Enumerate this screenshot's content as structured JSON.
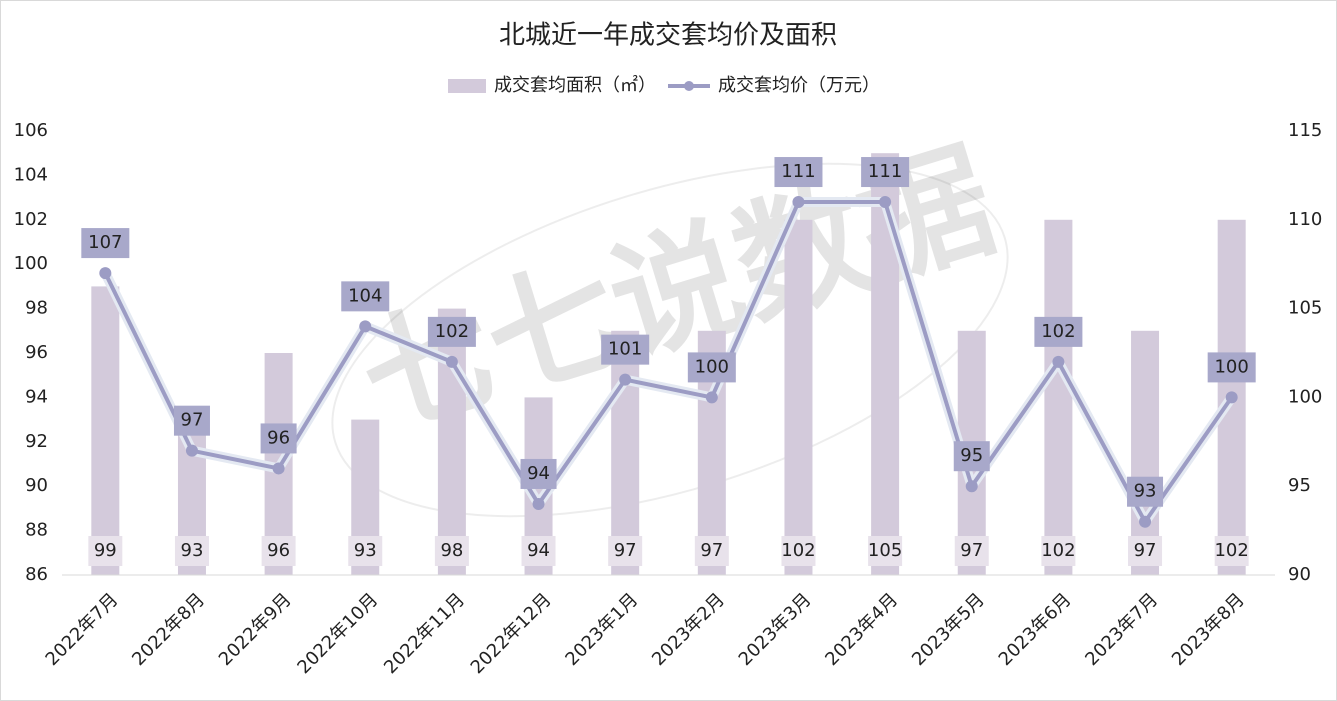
{
  "chart_data": {
    "type": "combo",
    "title": "北城近一年成交套均价及面积",
    "watermark": "七七说数据",
    "categories": [
      "2022年7月",
      "2022年8月",
      "2022年9月",
      "2022年10月",
      "2022年11月",
      "2022年12月",
      "2023年1月",
      "2023年2月",
      "2023年3月",
      "2023年4月",
      "2023年5月",
      "2023年6月",
      "2023年7月",
      "2023年8月"
    ],
    "series": [
      {
        "name": "成交套均面积（㎡）",
        "type": "bar",
        "axis": "y",
        "color": "#d3cadb",
        "values": [
          99,
          93,
          96,
          93,
          98,
          94,
          97,
          97,
          102,
          105,
          97,
          102,
          97,
          102
        ]
      },
      {
        "name": "成交套均价（万元）",
        "type": "line",
        "axis": "y2",
        "color": "#9c9cc4",
        "values": [
          107,
          97,
          96,
          104,
          102,
          94,
          101,
          100,
          111,
          111,
          95,
          102,
          93,
          100
        ]
      }
    ],
    "ylim": [
      86,
      106
    ],
    "yticks": [
      86,
      88,
      90,
      92,
      94,
      96,
      98,
      100,
      102,
      104,
      106
    ],
    "y2lim": [
      90,
      115
    ],
    "y2ticks": [
      90,
      95,
      100,
      105,
      110,
      115
    ],
    "legend": "top",
    "grid": false
  }
}
